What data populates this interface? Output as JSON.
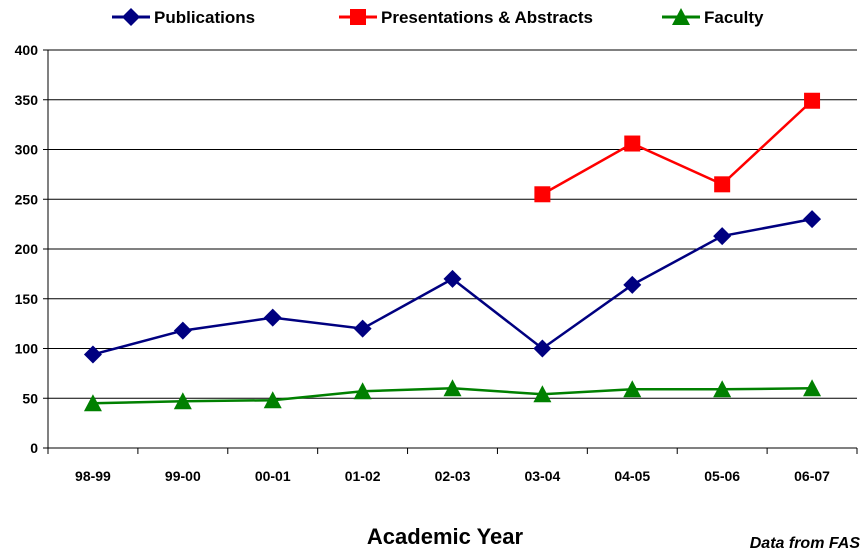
{
  "chart_data": {
    "type": "line",
    "categories": [
      "98-99",
      "99-00",
      "00-01",
      "01-02",
      "02-03",
      "03-04",
      "04-05",
      "05-06",
      "06-07"
    ],
    "series": [
      {
        "name": "Publications",
        "color": "#000080",
        "marker": "diamond",
        "values": [
          94,
          118,
          131,
          120,
          170,
          100,
          164,
          213,
          230
        ]
      },
      {
        "name": "Presentations & Abstracts",
        "color": "#FF0000",
        "marker": "square",
        "values": [
          null,
          null,
          null,
          null,
          null,
          255,
          306,
          265,
          349
        ]
      },
      {
        "name": "Faculty",
        "color": "#008000",
        "marker": "triangle",
        "values": [
          45,
          47,
          48,
          57,
          60,
          54,
          59,
          59,
          60
        ]
      }
    ],
    "xlabel": "Academic Year",
    "ylabel": "",
    "ylim": [
      0,
      400
    ],
    "yticks": [
      0,
      50,
      100,
      150,
      200,
      250,
      300,
      350,
      400
    ],
    "grid": true,
    "legend_position": "top",
    "note": "Data from FAS"
  }
}
